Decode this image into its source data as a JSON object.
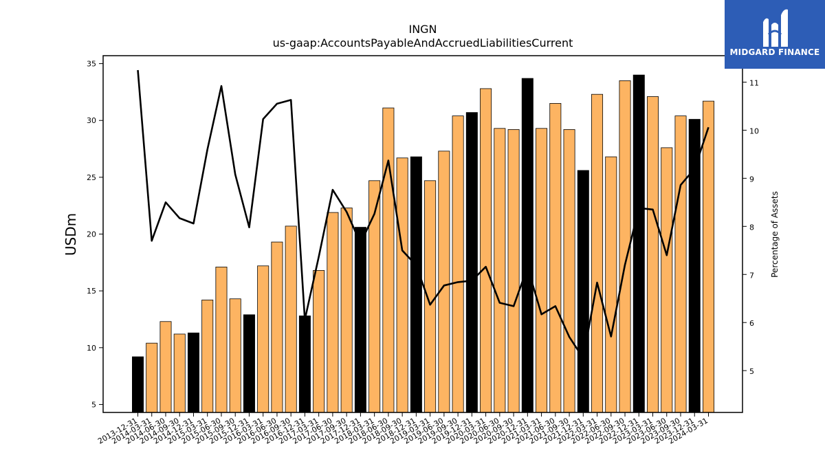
{
  "brand": {
    "name": "MIDGARD FINANCE",
    "icon": "midgard-logo-icon",
    "color": "#2d5db6"
  },
  "chart_data": {
    "type": "bar",
    "title": "INGN",
    "subtitle": "us-gaap:AccountsPayableAndAccruedLiabilitiesCurrent",
    "ylabel": "USDm",
    "y2label": "Percentage of Assets",
    "ylim": [
      4.3,
      35.7
    ],
    "y2lim": [
      4.13,
      11.55
    ],
    "yticks": [
      5,
      10,
      15,
      20,
      25,
      30,
      35
    ],
    "y2ticks": [
      5,
      6,
      7,
      8,
      9,
      10,
      11
    ],
    "grid": false,
    "colors": {
      "bar": "#fdb462",
      "bar_q4": "#000000",
      "line": "#000000"
    },
    "categories": [
      "2013-12-31",
      "2014-03-31",
      "2014-06-30",
      "2014-09-30",
      "2014-12-31",
      "2015-03-31",
      "2015-06-30",
      "2015-09-30",
      "2015-12-31",
      "2016-03-31",
      "2016-06-30",
      "2016-09-30",
      "2016-12-31",
      "2017-03-31",
      "2017-06-30",
      "2017-09-30",
      "2017-12-31",
      "2018-03-31",
      "2018-06-30",
      "2018-09-30",
      "2018-12-31",
      "2019-03-31",
      "2019-06-30",
      "2019-09-30",
      "2019-12-31",
      "2020-03-31",
      "2020-06-30",
      "2020-09-30",
      "2020-12-31",
      "2021-03-31",
      "2021-06-30",
      "2021-09-30",
      "2021-12-31",
      "2022-03-31",
      "2022-06-30",
      "2022-09-30",
      "2022-12-31",
      "2023-03-31",
      "2023-06-30",
      "2023-09-30",
      "2023-12-31",
      "2024-03-31"
    ],
    "series": [
      {
        "kind": "bar",
        "axis": "left",
        "values": [
          9.2,
          10.4,
          12.3,
          11.2,
          11.3,
          14.2,
          17.1,
          14.3,
          12.9,
          17.2,
          19.3,
          20.7,
          12.8,
          16.8,
          21.9,
          22.3,
          20.6,
          24.7,
          31.1,
          26.7,
          26.8,
          24.7,
          27.3,
          30.4,
          30.7,
          32.8,
          29.3,
          29.2,
          33.7,
          29.3,
          31.5,
          29.2,
          25.6,
          32.3,
          26.8,
          33.5,
          34.0,
          32.1,
          27.6,
          30.4,
          30.1,
          31.7
        ]
      },
      {
        "kind": "line",
        "axis": "right",
        "values": [
          11.25,
          7.7,
          8.5,
          8.17,
          8.06,
          9.6,
          10.92,
          9.08,
          7.98,
          10.23,
          10.55,
          10.63,
          6.06,
          7.37,
          8.76,
          8.3,
          7.65,
          8.26,
          9.37,
          7.5,
          7.19,
          6.37,
          6.77,
          6.84,
          6.87,
          7.16,
          6.41,
          6.34,
          7.15,
          6.17,
          6.34,
          5.7,
          5.26,
          6.83,
          5.71,
          7.2,
          8.38,
          8.35,
          7.4,
          8.86,
          9.2,
          10.06
        ]
      }
    ]
  }
}
